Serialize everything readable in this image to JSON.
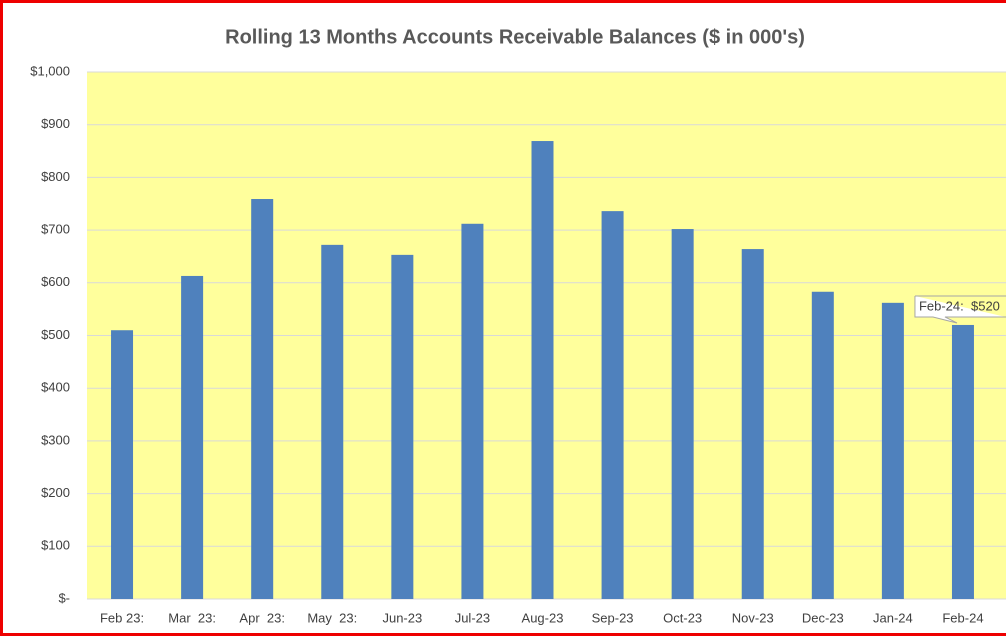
{
  "chart_data": {
    "type": "bar",
    "title": "Rolling 13 Months Accounts Receivable Balances ($ in 000's)",
    "categories": [
      "Feb 23:",
      "Mar  23:",
      "Apr  23:",
      "May  23:",
      "Jun-23",
      "Jul-23",
      "Aug-23",
      "Sep-23",
      "Oct-23",
      "Nov-23",
      "Dec-23",
      "Jan-24",
      "Feb-24"
    ],
    "values": [
      510,
      613,
      759,
      672,
      653,
      712,
      869,
      736,
      702,
      664,
      583,
      562,
      520
    ],
    "value_labels": [
      null,
      null,
      null,
      null,
      null,
      null,
      null,
      null,
      null,
      null,
      null,
      null,
      "Feb-24:  $520"
    ],
    "color": "#4f81bd",
    "ylim": [
      0,
      1000
    ],
    "yticks": [
      {
        "value": 0,
        "label": "$-"
      },
      {
        "value": 100,
        "label": "$100"
      },
      {
        "value": 200,
        "label": "$200"
      },
      {
        "value": 300,
        "label": "$300"
      },
      {
        "value": 400,
        "label": "$400"
      },
      {
        "value": 500,
        "label": "$500"
      },
      {
        "value": 600,
        "label": "$600"
      },
      {
        "value": 700,
        "label": "$700"
      },
      {
        "value": 800,
        "label": "$800"
      },
      {
        "value": 900,
        "label": "$900"
      },
      {
        "value": 1000,
        "label": "$1,000"
      }
    ],
    "grid": true
  }
}
